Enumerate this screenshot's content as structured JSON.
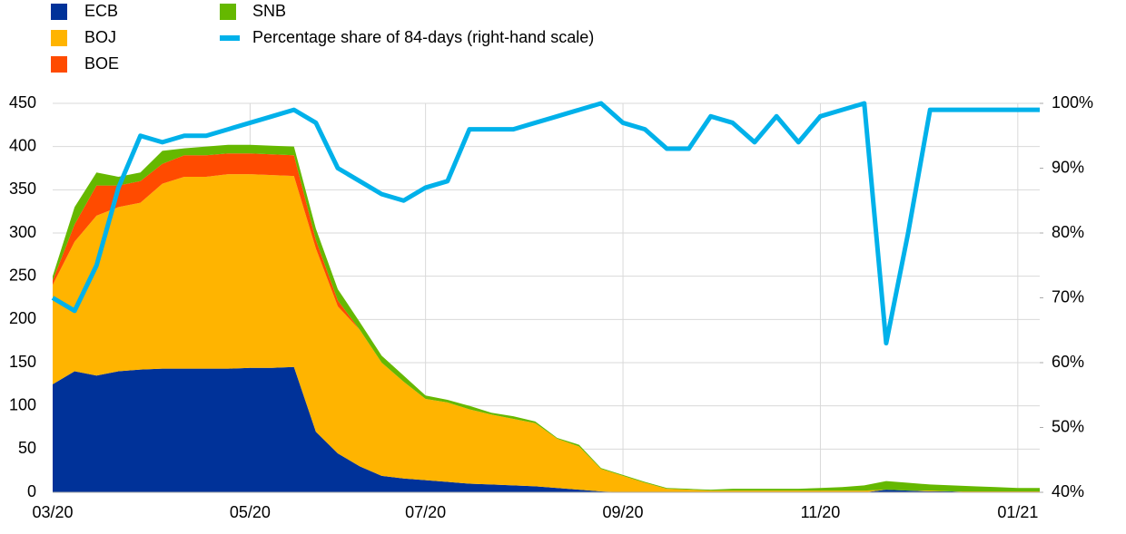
{
  "chart_data": {
    "type": "stacked-area-line",
    "categories": [
      "03/20",
      null,
      null,
      null,
      null,
      null,
      null,
      null,
      null,
      "05/20",
      null,
      null,
      null,
      null,
      null,
      null,
      null,
      "07/20",
      null,
      null,
      null,
      null,
      null,
      null,
      null,
      null,
      "09/20",
      null,
      null,
      null,
      null,
      null,
      null,
      null,
      null,
      "11/20",
      null,
      null,
      null,
      null,
      null,
      null,
      null,
      null,
      "01/21",
      null
    ],
    "series": [
      {
        "name": "ECB",
        "color": "#003299",
        "values": [
          125,
          140,
          135,
          140,
          142,
          143,
          143,
          143,
          143,
          144,
          144,
          145,
          70,
          45,
          30,
          19,
          16,
          14,
          12,
          10,
          9,
          8,
          7,
          5,
          3,
          1,
          0,
          0,
          0,
          0,
          0,
          0,
          0,
          0,
          0,
          0,
          0,
          0,
          3,
          2,
          1,
          1,
          0,
          0,
          0,
          0
        ]
      },
      {
        "name": "BOJ",
        "color": "#ffb400",
        "values": [
          115,
          150,
          185,
          190,
          193,
          214,
          222,
          222,
          225,
          224,
          223,
          221,
          212,
          170,
          158,
          131,
          112,
          94,
          92,
          86,
          81,
          77,
          73,
          57,
          50,
          26,
          19,
          11,
          4,
          3,
          2,
          2,
          2,
          2,
          2,
          2,
          2,
          2,
          0,
          0,
          1,
          0,
          1,
          1,
          1,
          1
        ]
      },
      {
        "name": "BOE",
        "color": "#ff4b00",
        "values": [
          5,
          20,
          35,
          25,
          25,
          23,
          25,
          25,
          24,
          24,
          24,
          24,
          10,
          7,
          0,
          0,
          0,
          0,
          0,
          0,
          0,
          0,
          0,
          0,
          0,
          0,
          0,
          0,
          0,
          0,
          0,
          0,
          0,
          0,
          0,
          0,
          0,
          0,
          0,
          0,
          0,
          0,
          0,
          0,
          0,
          0
        ]
      },
      {
        "name": "SNB",
        "color": "#65b800",
        "values": [
          5,
          20,
          15,
          10,
          10,
          15,
          8,
          10,
          10,
          10,
          10,
          10,
          13,
          13,
          9,
          8,
          7,
          4,
          3,
          4,
          2,
          3,
          2,
          1,
          2,
          1,
          1,
          1,
          1,
          1,
          1,
          2,
          2,
          2,
          2,
          3,
          4,
          6,
          10,
          9,
          7,
          7,
          6,
          5,
          4,
          4
        ]
      },
      {
        "name": "Percentage share of 84-days (right-hand scale)",
        "color": "#00b1ea",
        "axis": "y2",
        "values": [
          70,
          68,
          75,
          87,
          95,
          94,
          95,
          95,
          96,
          97,
          98,
          99,
          97,
          90,
          88,
          86,
          85,
          87,
          88,
          96,
          96,
          96,
          97,
          98,
          99,
          100,
          97,
          96,
          93,
          93,
          98,
          97,
          94,
          98,
          94,
          98,
          99,
          100,
          63,
          80,
          99,
          99,
          99,
          99,
          99,
          99
        ]
      }
    ],
    "ylim": [
      0,
      450
    ],
    "yticks": [
      0,
      50,
      100,
      150,
      200,
      250,
      300,
      350,
      400,
      450
    ],
    "y2lim": [
      40,
      100
    ],
    "y2ticks": [
      {
        "value": 40,
        "label": "40%"
      },
      {
        "value": 50,
        "label": "50%"
      },
      {
        "value": 60,
        "label": "60%"
      },
      {
        "value": 70,
        "label": "70%"
      },
      {
        "value": 80,
        "label": "80%"
      },
      {
        "value": 90,
        "label": "90%"
      },
      {
        "value": 100,
        "label": "100%"
      }
    ],
    "grid": true
  }
}
